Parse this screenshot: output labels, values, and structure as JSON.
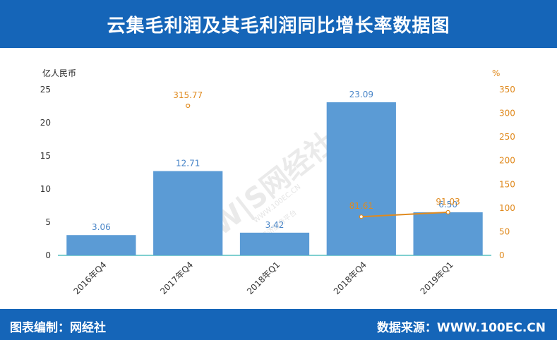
{
  "header": {
    "title": "云集毛利润及其毛利润同比增长率数据图"
  },
  "footer": {
    "left": "图表编制：网经社",
    "right": "数据来源：WWW.100EC.CN"
  },
  "watermark": {
    "logo": "W|S网经社",
    "sub": "WWW.100EC.CN",
    "sub2": "网络经济服务平台"
  },
  "colors": {
    "bar": "#5b9bd5",
    "line": "#e08a1e",
    "header": "#1565b8",
    "axis": "#55c0c0"
  },
  "chart_data": {
    "type": "bar",
    "categories": [
      "2016年Q4",
      "2017年Q4",
      "2018年Q1",
      "2018年Q4",
      "2019年Q1"
    ],
    "series": [
      {
        "type": "bar",
        "axis": "left",
        "values": [
          3.06,
          12.71,
          3.42,
          23.09,
          6.5
        ],
        "labels": [
          "3.06",
          "12.71",
          "3.42",
          "23.09",
          "6.50"
        ]
      },
      {
        "type": "line",
        "axis": "right",
        "values": [
          null,
          315.77,
          null,
          81.61,
          91.03
        ],
        "labels": [
          "",
          "315.77",
          "",
          "81.61",
          "91.03"
        ]
      }
    ],
    "ylabel": "亿人民币",
    "y2label": "%",
    "ylim": [
      0,
      25
    ],
    "y2lim": [
      0,
      350
    ],
    "yticks": [
      0,
      5,
      10,
      15,
      20,
      25
    ],
    "y2ticks": [
      0,
      50,
      100,
      150,
      200,
      250,
      300,
      350
    ],
    "grid": false,
    "legend": "none"
  }
}
